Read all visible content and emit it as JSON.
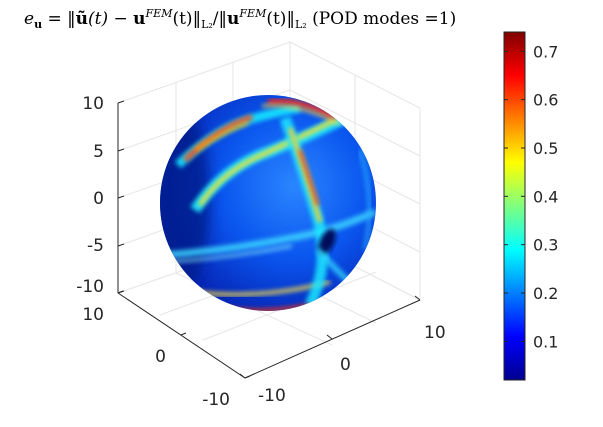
{
  "chart_data": {
    "type": "surface3d",
    "title": {
      "lhs": "e",
      "lhs_sub": "u",
      "eq": " = ‖",
      "u_tilde": "ũ",
      "t1": "(t) − ",
      "u1": "u",
      "sup1": "FEM",
      "t2": "(t)‖",
      "sub1": "L₂",
      "slash": "/‖",
      "u2": "u",
      "sup2": "FEM",
      "t3": "(t)‖",
      "sub2": "L₂",
      "suffix": " (POD modes =1)"
    },
    "axes": {
      "x": {
        "range": [
          -10,
          10
        ],
        "ticks": [
          "10",
          "0",
          "-10"
        ]
      },
      "y": {
        "range": [
          -10,
          10
        ],
        "ticks": [
          "-10",
          "0",
          "10"
        ]
      },
      "z": {
        "range": [
          -10,
          10
        ],
        "ticks": [
          "10",
          "5",
          "0",
          "-5",
          "-10"
        ]
      }
    },
    "surface": {
      "shape": "sphere",
      "radius": 10,
      "colormap": "jet"
    },
    "colorbar": {
      "range": [
        0.02,
        0.74
      ],
      "ticks": [
        "0.7",
        "0.6",
        "0.5",
        "0.4",
        "0.3",
        "0.2",
        "0.1"
      ],
      "tick_values": [
        0.7,
        0.6,
        0.5,
        0.4,
        0.3,
        0.2,
        0.1
      ],
      "colors": [
        "#00008f",
        "#0000ff",
        "#00ffff",
        "#ffff00",
        "#ff0000",
        "#800000"
      ]
    },
    "grid": true
  }
}
